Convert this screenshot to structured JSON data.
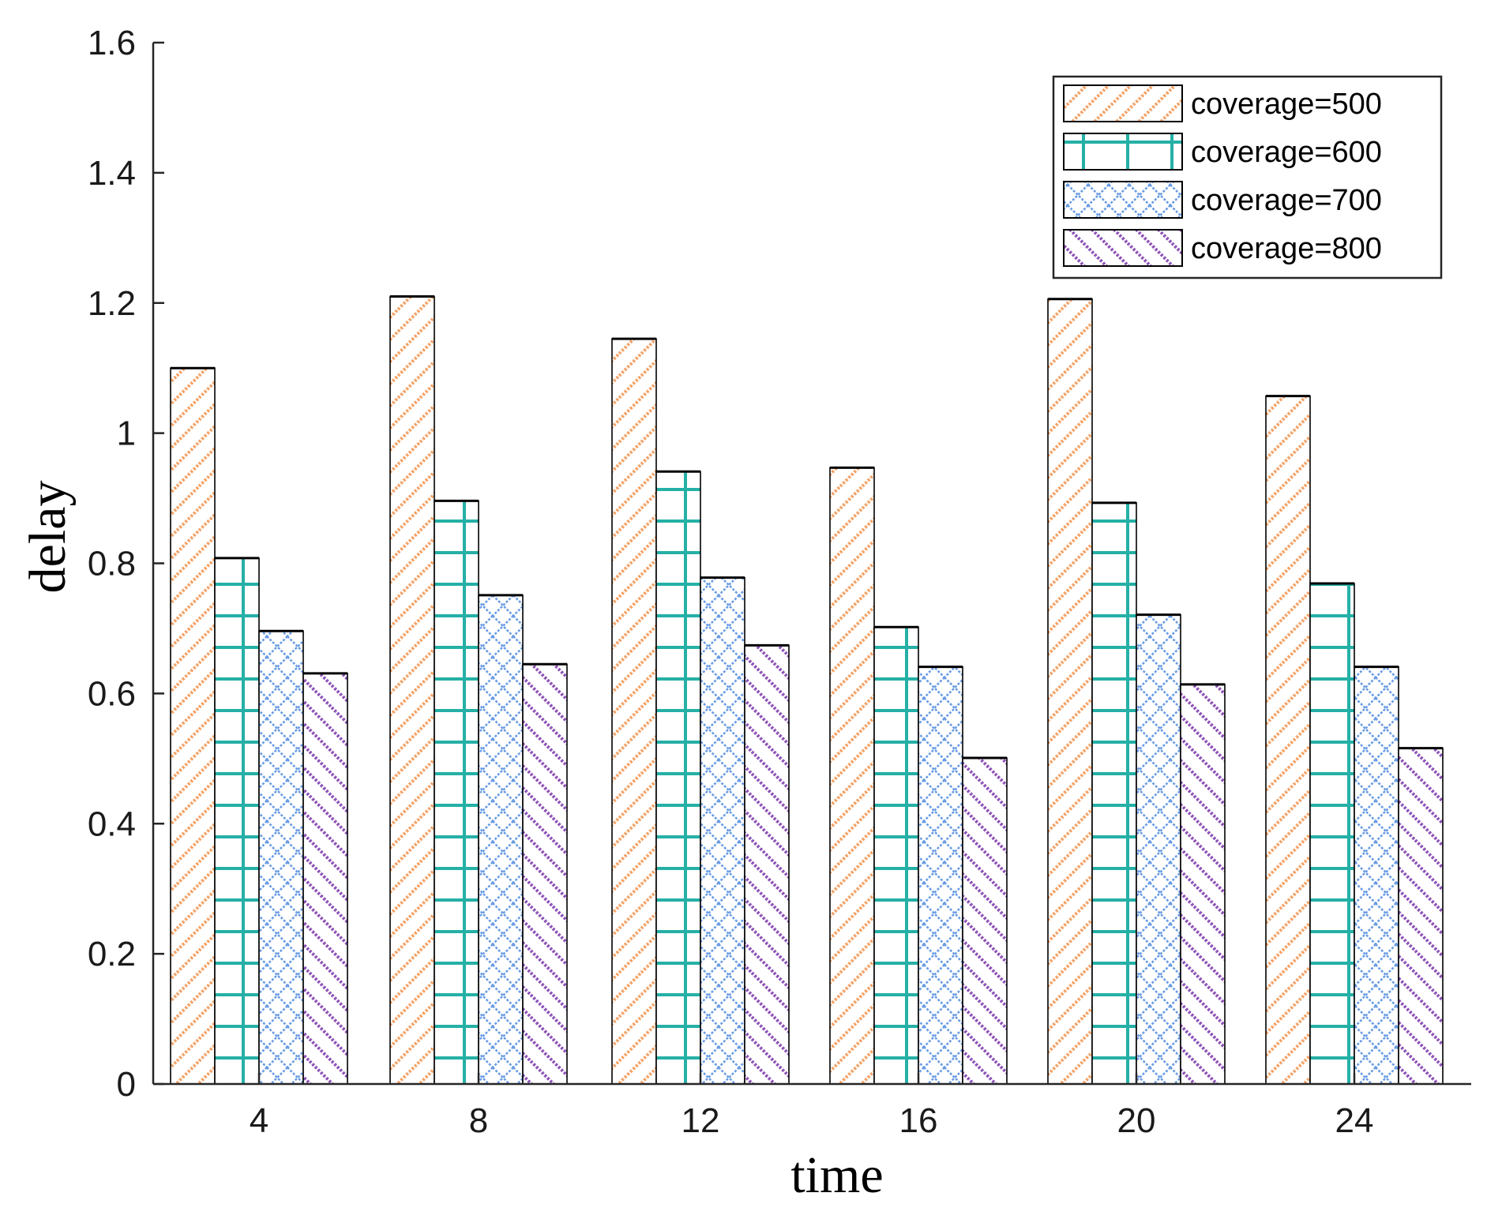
{
  "chart_data": {
    "type": "bar",
    "title": "",
    "xlabel": "time",
    "ylabel": "delay",
    "categories": [
      "4",
      "8",
      "12",
      "16",
      "20",
      "24"
    ],
    "ylim": [
      0,
      1.6
    ],
    "yticks": [
      "0",
      "0.2",
      "0.4",
      "0.6",
      "0.8",
      "1",
      "1.2",
      "1.4",
      "1.6"
    ],
    "grid": false,
    "legend_position": "top-right",
    "series": [
      {
        "name": "coverage=500",
        "color": "#f4a469",
        "pattern": "diagonal-up",
        "values": [
          1.1,
          1.21,
          1.145,
          0.947,
          1.206,
          1.057
        ]
      },
      {
        "name": "coverage=600",
        "color": "#25b0a6",
        "pattern": "grid",
        "values": [
          0.808,
          0.896,
          0.941,
          0.702,
          0.893,
          0.769
        ]
      },
      {
        "name": "coverage=700",
        "color": "#6c9de4",
        "pattern": "crosshatch",
        "values": [
          0.696,
          0.751,
          0.778,
          0.641,
          0.721,
          0.641
        ]
      },
      {
        "name": "coverage=800",
        "color": "#8e54b8",
        "pattern": "diagonal-down",
        "values": [
          0.631,
          0.645,
          0.674,
          0.501,
          0.614,
          0.516
        ]
      }
    ]
  }
}
